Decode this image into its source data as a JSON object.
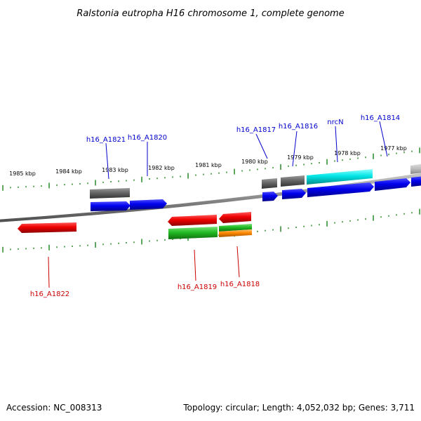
{
  "title": "Ralstonia eutropha H16 chromosome 1, complete genome",
  "scale_labels": [
    "1985 kbp",
    "1984 kbp",
    "1983 kbp",
    "1982 kbp",
    "1981 kbp",
    "1980 kbp",
    "1979 kbp",
    "1978 kbp",
    "1977 kbp"
  ],
  "gene_labels_top": [
    "h16_A1821",
    "h16_A1820",
    "h16_A1817",
    "h16_A1816",
    "nrcN",
    "h16_A1814"
  ],
  "gene_labels_bottom": [
    "h16_A1822",
    "h16_A1819",
    "h16_A1818"
  ],
  "footer": {
    "accession": "Accession: NC_008313",
    "summary": "Topology: circular; Length: 4,052,032 bp; Genes: 3,711"
  },
  "colors": {
    "backbone": "#8c8c8c",
    "ticks": "#2a8a2a",
    "gene_forward": "#0000ee",
    "gene_reverse": "#ee0000",
    "feature_gray": "#666666",
    "feature_cyan": "#00e5e5",
    "feature_green": "#22bb22",
    "feature_orange": "#ff8800",
    "label_top": "#0000cc",
    "label_bottom": "#cc0000"
  }
}
